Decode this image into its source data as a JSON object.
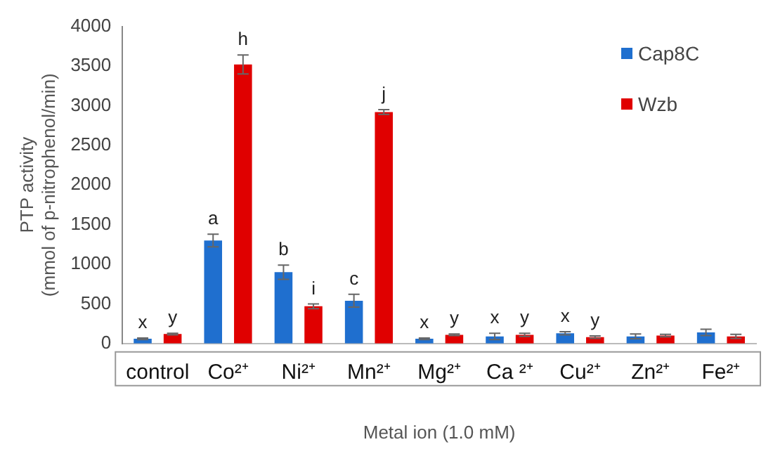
{
  "chart_data": {
    "type": "bar",
    "xlabel": "Metal ion (1.0 mM)",
    "ylabel": "PTP activity\n(mmol of p-nitrophenol/min)",
    "categories": [
      "control",
      "Co²⁺",
      "Ni²⁺",
      "Mn²⁺",
      "Mg²⁺",
      "Ca ²⁺",
      "Cu²⁺",
      "Zn²⁺",
      "Fe²⁺"
    ],
    "series": [
      {
        "name": "Cap8C",
        "color": "#1f6fcf",
        "values": [
          60,
          1300,
          900,
          540,
          60,
          90,
          130,
          90,
          140
        ],
        "errors": [
          10,
          80,
          90,
          80,
          10,
          40,
          20,
          30,
          40
        ]
      },
      {
        "name": "Wzb",
        "color": "#e00000",
        "values": [
          120,
          3520,
          470,
          2920,
          110,
          110,
          80,
          100,
          90
        ],
        "errors": [
          10,
          120,
          30,
          30,
          10,
          20,
          15,
          15,
          25
        ]
      }
    ],
    "ylim": [
      0,
      4000
    ],
    "yticks": [
      0,
      500,
      1000,
      1500,
      2000,
      2500,
      3000,
      3500,
      4000
    ],
    "grid": false,
    "legend": "top right",
    "annotations": [
      {
        "text": "x",
        "x": "control",
        "y": 60
      },
      {
        "text": "y",
        "x": "control",
        "y": 120
      },
      {
        "text": "a",
        "x": "Co²⁺",
        "y": 1300
      },
      {
        "text": "h",
        "x": "Co²⁺",
        "y": 3520
      },
      {
        "text": "b",
        "x": "Ni²⁺",
        "y": 900
      },
      {
        "text": "i",
        "x": "Ni²⁺",
        "y": 470
      },
      {
        "text": "c",
        "x": "Mn²⁺",
        "y": 540
      },
      {
        "text": "j",
        "x": "Mn²⁺",
        "y": 2920
      },
      {
        "text": "x",
        "x": "Mg²⁺",
        "y": 60
      },
      {
        "text": "y",
        "x": "Mg²⁺",
        "y": 110
      },
      {
        "text": "x",
        "x": "Ca ²⁺",
        "y": 90
      },
      {
        "text": "y",
        "x": "Ca ²⁺",
        "y": 110
      },
      {
        "text": "x",
        "x": "Cu²⁺",
        "y": 130
      },
      {
        "text": "y",
        "x": "Cu²⁺",
        "y": 80
      }
    ]
  }
}
